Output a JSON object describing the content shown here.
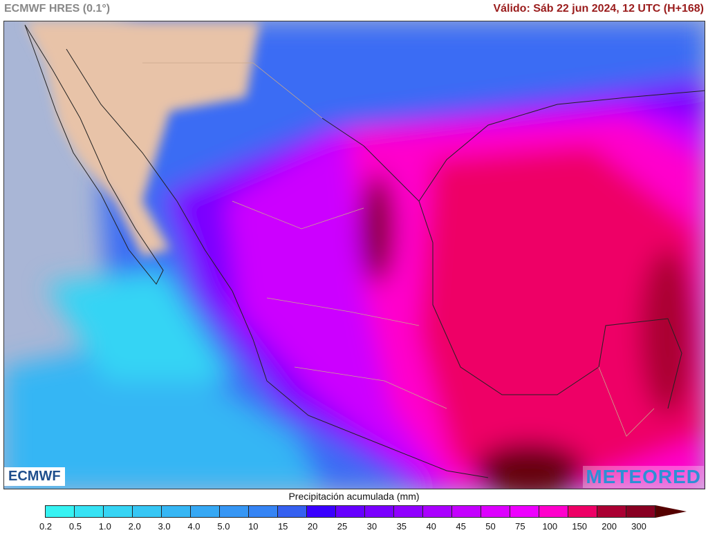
{
  "header": {
    "model": "ECMWF HRES (0.1°)",
    "valid": "Válido: Sáb 22 jun 2024, 12 UTC (H+168)"
  },
  "logos": {
    "left": "ECMWF",
    "right": "METEORED"
  },
  "legend": {
    "title": "Precipitación acumulada (mm)",
    "ticks": [
      "0.2",
      "0.5",
      "1.0",
      "2.0",
      "3.0",
      "4.0",
      "5.0",
      "10",
      "15",
      "20",
      "25",
      "30",
      "35",
      "40",
      "45",
      "50",
      "75",
      "100",
      "150",
      "200",
      "300"
    ],
    "colors": [
      "#36f2f2",
      "#36e2f4",
      "#36d4f4",
      "#36c6f4",
      "#36b6f4",
      "#36a8f4",
      "#3696f4",
      "#3584f4",
      "#3560f0",
      "#3a00ff",
      "#6600ff",
      "#7a00ff",
      "#9000ff",
      "#aa00ff",
      "#c400ff",
      "#dd00ff",
      "#ee00ff",
      "#ff00cc",
      "#ee0066",
      "#aa0033",
      "#880022"
    ],
    "overflow_color": "#550000"
  },
  "map": {
    "ocean_color": "#a9b6d6",
    "land_dry_color": "#e8c3a8"
  }
}
